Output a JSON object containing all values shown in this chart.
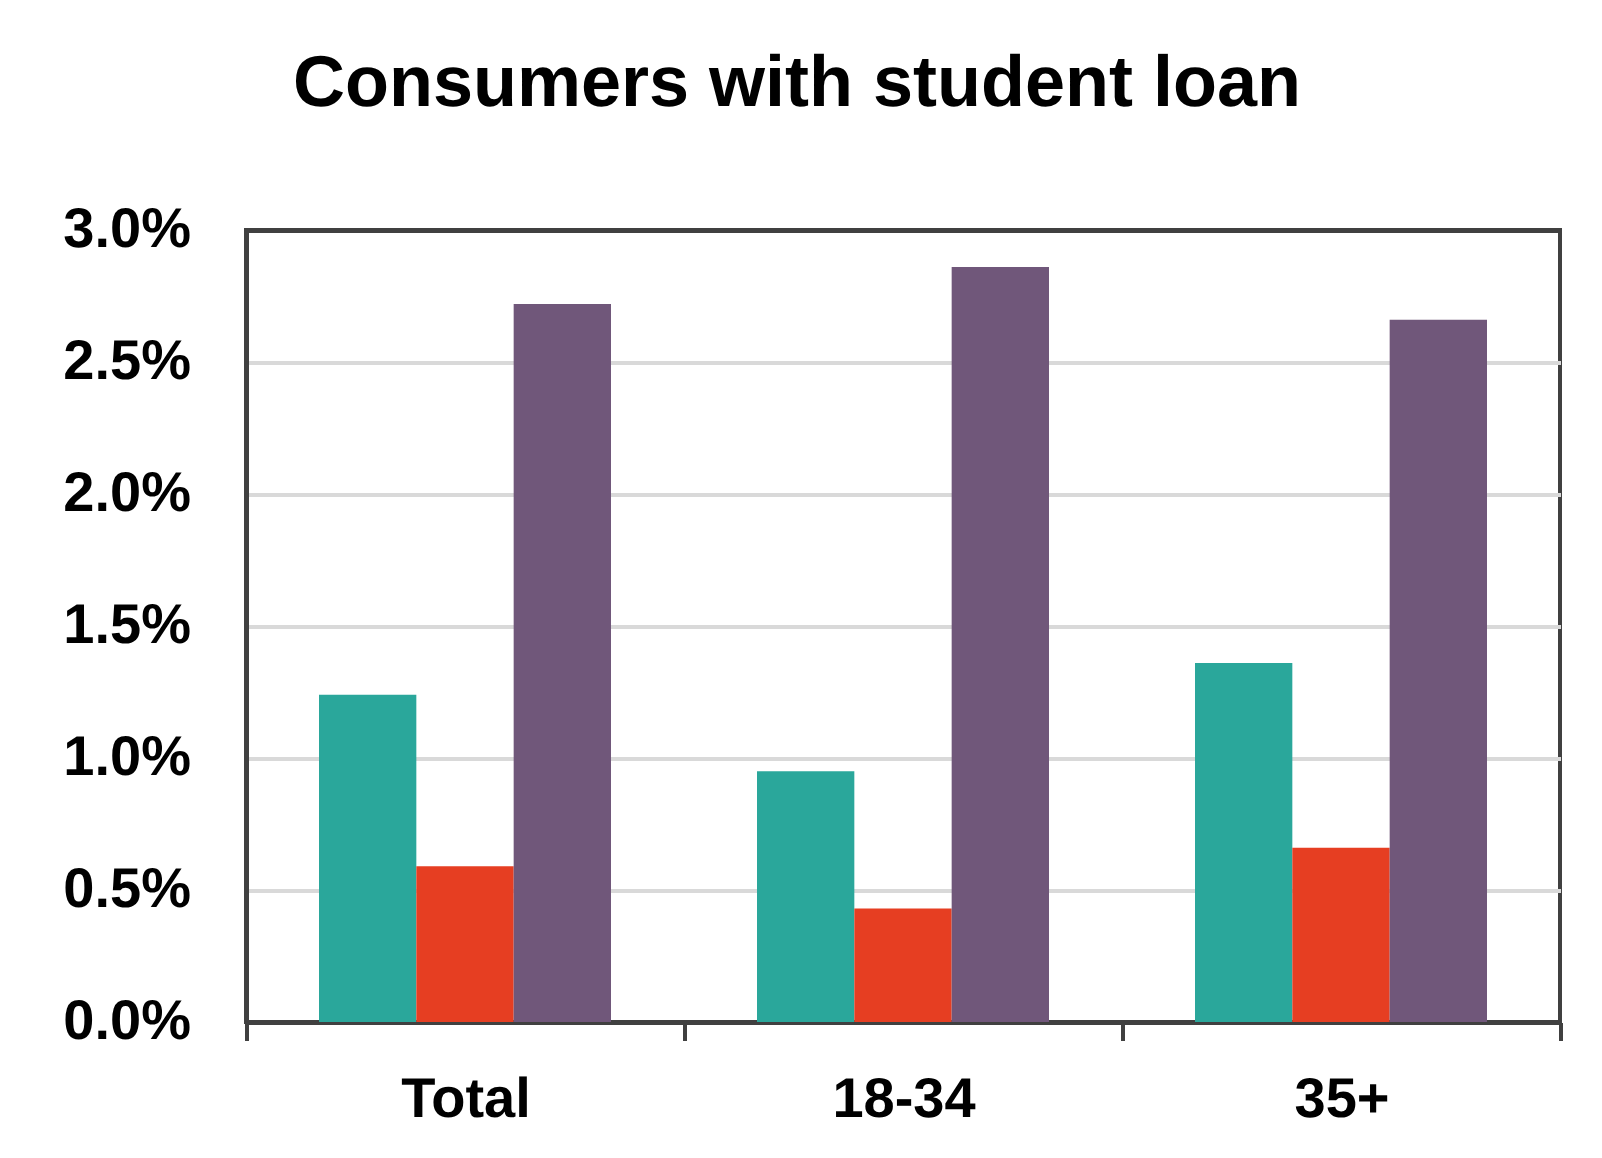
{
  "chart_data": {
    "type": "bar",
    "title": "Consumers with student loan",
    "categories": [
      "Total",
      "18-34",
      "35+"
    ],
    "series": [
      {
        "color": "#2aa79b",
        "values": [
          1.24,
          0.95,
          1.36
        ]
      },
      {
        "color": "#e63e22",
        "values": [
          0.59,
          0.43,
          0.66
        ]
      },
      {
        "color": "#70577a",
        "values": [
          2.72,
          2.86,
          2.66
        ]
      }
    ],
    "ylim": [
      0,
      3
    ],
    "yticks": [
      {
        "value": 0,
        "label": "0.0%"
      },
      {
        "value": 0.5,
        "label": "0.5%"
      },
      {
        "value": 1,
        "label": "1.0%"
      },
      {
        "value": 1.5,
        "label": "1.5%"
      },
      {
        "value": 2,
        "label": "2.0%"
      },
      {
        "value": 2.5,
        "label": "2.5%"
      },
      {
        "value": 3,
        "label": "3.0%"
      }
    ],
    "grid": "y"
  }
}
